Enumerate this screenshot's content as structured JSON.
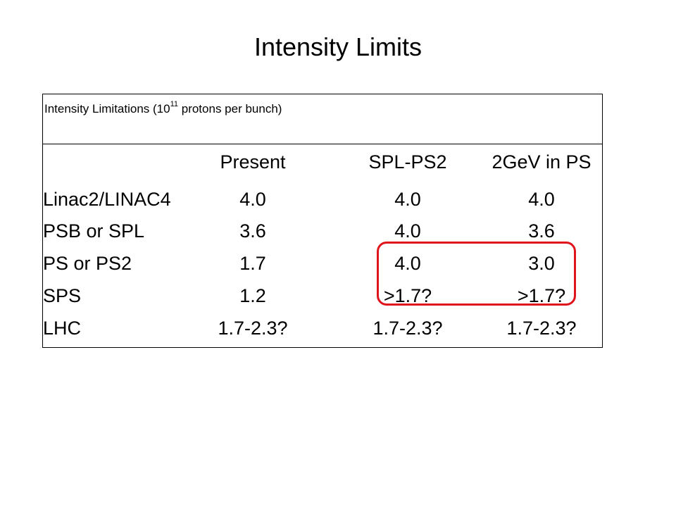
{
  "title": "Intensity Limits",
  "table": {
    "caption_prefix": "Intensity Limitations (10",
    "caption_exponent": "11",
    "caption_suffix": " protons per bunch)",
    "headers": [
      "Present",
      "SPL-PS2",
      "2GeV in PS"
    ],
    "rows": [
      {
        "label": "Linac2/LINAC4",
        "values": [
          "4.0",
          "4.0",
          "4.0"
        ]
      },
      {
        "label": "PSB or SPL",
        "values": [
          "3.6",
          "4.0",
          "3.6"
        ]
      },
      {
        "label": "PS or PS2",
        "values": [
          "1.7",
          "4.0",
          "3.0"
        ]
      },
      {
        "label": "SPS",
        "values": [
          "1.2",
          ">1.7?",
          ">1.7?"
        ]
      },
      {
        "label": "LHC",
        "values": [
          "1.7-2.3?",
          "1.7-2.3?",
          "1.7-2.3?"
        ]
      }
    ]
  },
  "highlight_color": "#e0151c"
}
